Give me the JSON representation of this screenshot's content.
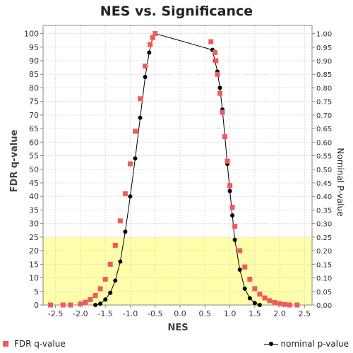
{
  "chart_data": {
    "type": "scatter",
    "title": "NES vs. Significance",
    "xlabel": "NES",
    "ylabel_left": "FDR q-value",
    "ylabel_right": "Nominal P-value",
    "xlim": [
      -2.75,
      2.65
    ],
    "ylim_left": [
      0,
      103
    ],
    "ylim_right": [
      0,
      1.03
    ],
    "x_ticks": [
      "-2.5",
      "-2.0",
      "-1.5",
      "-1.0",
      "-0.5",
      "0.0",
      "0.5",
      "1.0",
      "1.5",
      "2.0",
      "2.5"
    ],
    "y_left_ticks": [
      "0",
      "5",
      "10",
      "15",
      "20",
      "25",
      "30",
      "35",
      "40",
      "45",
      "50",
      "55",
      "60",
      "65",
      "70",
      "75",
      "80",
      "85",
      "90",
      "95",
      "100"
    ],
    "y_right_ticks": [
      "0.00",
      "0.05",
      "0.10",
      "0.15",
      "0.20",
      "0.25",
      "0.30",
      "0.35",
      "0.40",
      "0.45",
      "0.50",
      "0.55",
      "0.60",
      "0.65",
      "0.70",
      "0.75",
      "0.80",
      "0.85",
      "0.90",
      "0.95",
      "1.00"
    ],
    "highlight_band": {
      "y_from": 0,
      "y_to": 25,
      "color": "#ffffaa"
    },
    "grid": true,
    "series": [
      {
        "name": "FDR q-value",
        "axis": "left",
        "marker": "square",
        "color": "#f15a5a",
        "points": [
          [
            -2.6,
            0
          ],
          [
            -2.35,
            0
          ],
          [
            -2.2,
            0
          ],
          [
            -2.0,
            0.4
          ],
          [
            -1.9,
            1
          ],
          [
            -1.8,
            2
          ],
          [
            -1.7,
            3.5
          ],
          [
            -1.6,
            6
          ],
          [
            -1.5,
            9.5
          ],
          [
            -1.4,
            15
          ],
          [
            -1.3,
            22
          ],
          [
            -1.2,
            31
          ],
          [
            -1.1,
            41
          ],
          [
            -1.0,
            52
          ],
          [
            -0.9,
            64
          ],
          [
            -0.8,
            76
          ],
          [
            -0.7,
            88
          ],
          [
            -0.6,
            96
          ],
          [
            -0.55,
            98.5
          ],
          [
            -0.5,
            100
          ],
          [
            0.62,
            97
          ],
          [
            0.7,
            93
          ],
          [
            0.72,
            90
          ],
          [
            0.75,
            85
          ],
          [
            0.8,
            78
          ],
          [
            0.85,
            71
          ],
          [
            0.9,
            62
          ],
          [
            0.95,
            53
          ],
          [
            1.0,
            44
          ],
          [
            1.05,
            36
          ],
          [
            1.1,
            29
          ],
          [
            1.2,
            20
          ],
          [
            1.3,
            14
          ],
          [
            1.4,
            9.5
          ],
          [
            1.5,
            6
          ],
          [
            1.6,
            4
          ],
          [
            1.7,
            2.6
          ],
          [
            1.8,
            1.6
          ],
          [
            1.9,
            0.9
          ],
          [
            2.0,
            0.5
          ],
          [
            2.1,
            0.2
          ],
          [
            2.2,
            0
          ],
          [
            2.35,
            0
          ]
        ]
      },
      {
        "name": "nominal p-value",
        "axis": "right",
        "marker": "circle-line",
        "color": "#000000",
        "points": [
          [
            -1.7,
            0.0
          ],
          [
            -1.6,
            0.005
          ],
          [
            -1.5,
            0.02
          ],
          [
            -1.4,
            0.045
          ],
          [
            -1.3,
            0.09
          ],
          [
            -1.2,
            0.16
          ],
          [
            -1.1,
            0.27
          ],
          [
            -1.0,
            0.4
          ],
          [
            -0.9,
            0.54
          ],
          [
            -0.8,
            0.69
          ],
          [
            -0.7,
            0.84
          ],
          [
            -0.62,
            0.93
          ],
          [
            -0.55,
            0.985
          ],
          [
            -0.5,
            1.0
          ],
          [
            0.65,
            0.94
          ],
          [
            0.7,
            0.9
          ],
          [
            0.75,
            0.86
          ],
          [
            0.8,
            0.8
          ],
          [
            0.85,
            0.72
          ],
          [
            0.9,
            0.62
          ],
          [
            0.95,
            0.52
          ],
          [
            1.0,
            0.42
          ],
          [
            1.05,
            0.33
          ],
          [
            1.1,
            0.24
          ],
          [
            1.2,
            0.13
          ],
          [
            1.3,
            0.06
          ],
          [
            1.4,
            0.025
          ],
          [
            1.5,
            0.007
          ],
          [
            1.6,
            0.0
          ]
        ]
      }
    ]
  }
}
